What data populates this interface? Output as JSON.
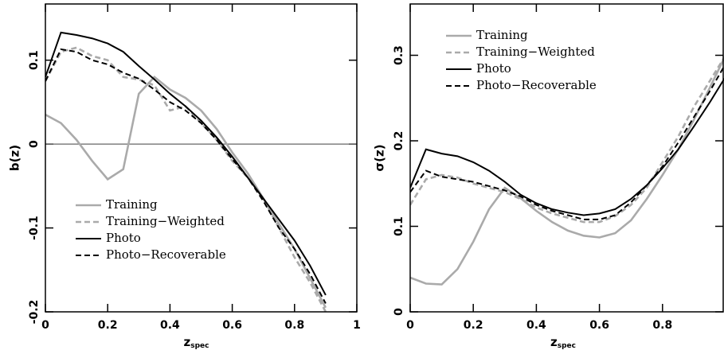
{
  "chart_data": [
    {
      "type": "line",
      "xlabel": "z",
      "xlabel_sub": "spec",
      "ylabel": "b(z)",
      "xlim": [
        0,
        1
      ],
      "ylim": [
        -0.2,
        0.167
      ],
      "xticks": [
        0,
        0.2,
        0.4,
        0.6,
        0.8,
        1
      ],
      "yticks": [
        -0.2,
        -0.1,
        0,
        0.1
      ],
      "hline": 0,
      "legend": "lower-left",
      "x": [
        0,
        0.05,
        0.1,
        0.15,
        0.2,
        0.25,
        0.3,
        0.35,
        0.4,
        0.45,
        0.5,
        0.55,
        0.6,
        0.65,
        0.7,
        0.75,
        0.8,
        0.85,
        0.9
      ],
      "series": [
        {
          "name": "Training",
          "color": "#aaaaaa",
          "style": "solid",
          "values": [
            0.035,
            0.025,
            0.005,
            -0.02,
            -0.042,
            -0.03,
            0.06,
            0.08,
            0.065,
            0.055,
            0.04,
            0.018,
            -0.01,
            -0.035,
            -0.065,
            -0.095,
            -0.125,
            -0.16,
            -0.195
          ]
        },
        {
          "name": "Training−Weighted",
          "color": "#aaaaaa",
          "style": "dashed",
          "values": [
            0.075,
            0.11,
            0.115,
            0.105,
            0.1,
            0.08,
            0.077,
            0.07,
            0.04,
            0.045,
            0.025,
            0.005,
            -0.02,
            -0.04,
            -0.065,
            -0.1,
            -0.135,
            -0.165,
            -0.2
          ]
        },
        {
          "name": "Photo",
          "color": "#000000",
          "style": "solid",
          "values": [
            0.08,
            0.133,
            0.13,
            0.126,
            0.12,
            0.11,
            0.093,
            0.077,
            0.06,
            0.045,
            0.028,
            0.008,
            -0.015,
            -0.04,
            -0.065,
            -0.09,
            -0.115,
            -0.145,
            -0.18
          ]
        },
        {
          "name": "Photo−Recoverable",
          "color": "#000000",
          "style": "dashed",
          "values": [
            0.075,
            0.113,
            0.11,
            0.1,
            0.095,
            0.085,
            0.078,
            0.065,
            0.05,
            0.04,
            0.025,
            0.005,
            -0.018,
            -0.04,
            -0.068,
            -0.1,
            -0.125,
            -0.155,
            -0.19
          ]
        }
      ]
    },
    {
      "type": "line",
      "xlabel": "z",
      "xlabel_sub": "spec",
      "ylabel": "σ(z)",
      "xlim": [
        0,
        1
      ],
      "ylim": [
        0,
        0.36
      ],
      "xticks": [
        0,
        0.2,
        0.4,
        0.6,
        0.8
      ],
      "yticks": [
        0,
        0.1,
        0.2,
        0.3
      ],
      "legend": "upper-left",
      "x": [
        0,
        0.05,
        0.1,
        0.15,
        0.2,
        0.25,
        0.3,
        0.35,
        0.4,
        0.45,
        0.5,
        0.55,
        0.6,
        0.65,
        0.7,
        0.75,
        0.8,
        0.85,
        0.9,
        0.95,
        1
      ],
      "series": [
        {
          "name": "Training",
          "color": "#aaaaaa",
          "style": "solid",
          "values": [
            0.04,
            0.033,
            0.032,
            0.05,
            0.082,
            0.12,
            0.145,
            0.133,
            0.118,
            0.105,
            0.095,
            0.089,
            0.087,
            0.092,
            0.107,
            0.132,
            0.16,
            0.19,
            0.225,
            0.262,
            0.3
          ]
        },
        {
          "name": "Training−Weighted",
          "color": "#aaaaaa",
          "style": "dashed",
          "values": [
            0.125,
            0.155,
            0.16,
            0.157,
            0.15,
            0.145,
            0.14,
            0.132,
            0.122,
            0.115,
            0.11,
            0.105,
            0.105,
            0.112,
            0.125,
            0.145,
            0.175,
            0.205,
            0.24,
            0.27,
            0.3
          ]
        },
        {
          "name": "Photo",
          "color": "#000000",
          "style": "solid",
          "values": [
            0.145,
            0.19,
            0.185,
            0.182,
            0.175,
            0.165,
            0.152,
            0.137,
            0.127,
            0.12,
            0.116,
            0.113,
            0.115,
            0.12,
            0.132,
            0.148,
            0.168,
            0.19,
            0.217,
            0.245,
            0.275
          ]
        },
        {
          "name": "Photo−Recoverable",
          "color": "#000000",
          "style": "dashed",
          "values": [
            0.14,
            0.165,
            0.158,
            0.155,
            0.152,
            0.147,
            0.142,
            0.135,
            0.125,
            0.118,
            0.113,
            0.108,
            0.108,
            0.113,
            0.128,
            0.148,
            0.17,
            0.198,
            0.228,
            0.258,
            0.29
          ]
        }
      ]
    }
  ]
}
